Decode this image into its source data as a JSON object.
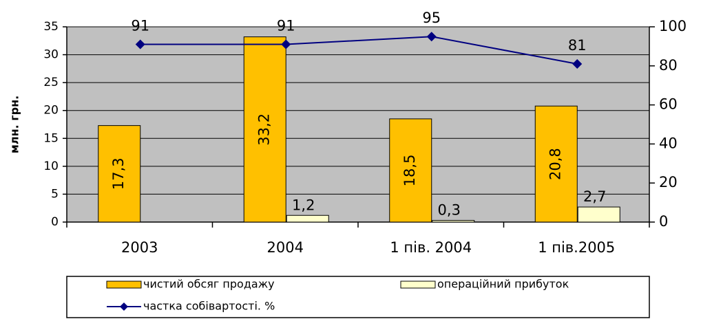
{
  "chart_data": {
    "type": "bar",
    "y_label": "млн. грн.",
    "categories": [
      "2003",
      "2004",
      "1 пів. 2004",
      "1 пів.2005"
    ],
    "series": [
      {
        "name": "чистий обсяг продажу",
        "color": "#ffc000",
        "values": [
          17.3,
          33.2,
          18.5,
          20.8
        ],
        "value_labels": [
          "17,3",
          "33,2",
          "18,5",
          "20,8"
        ]
      },
      {
        "name": "операційний прибуток",
        "color": "#ffffcc",
        "values": [
          null,
          1.2,
          0.3,
          2.7
        ],
        "value_labels": [
          null,
          "1,2",
          "0,3",
          "2,7"
        ]
      },
      {
        "name": "частка собівартості. %",
        "color": "#000080",
        "type": "line",
        "axis": "y2",
        "values": [
          91,
          91,
          95,
          81
        ]
      }
    ],
    "ylim": [
      0,
      35
    ],
    "yticks": [
      0,
      5,
      10,
      15,
      20,
      25,
      30,
      35
    ],
    "y2lim": [
      0,
      100
    ],
    "y2ticks": [
      0,
      20,
      40,
      60,
      80,
      100
    ],
    "grid": true,
    "background": "#c0c0c0",
    "legend": "bottom"
  }
}
